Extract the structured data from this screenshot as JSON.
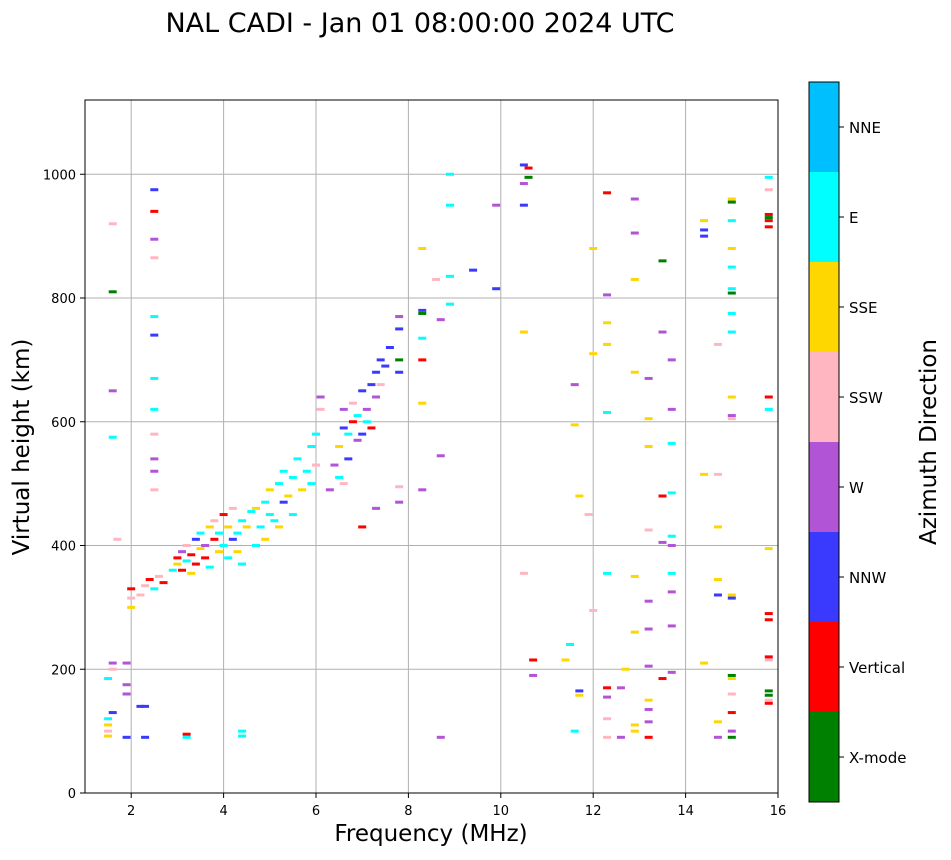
{
  "chart_data": {
    "type": "scatter",
    "title": "NAL CADI - Jan 01 08:00:00 2024 UTC",
    "xlabel": "Frequency (MHz)",
    "ylabel": "Virtual height (km)",
    "xlim": [
      1,
      16
    ],
    "ylim": [
      0,
      1120
    ],
    "xticks": [
      2,
      4,
      6,
      8,
      10,
      12,
      14,
      16
    ],
    "yticks": [
      0,
      200,
      400,
      600,
      800,
      1000
    ],
    "grid": true,
    "colorbar": {
      "label": "Azimuth Direction",
      "categories": [
        {
          "name": "X-mode",
          "color": "#008000"
        },
        {
          "name": "Vertical",
          "color": "#ff0000"
        },
        {
          "name": "NNW",
          "color": "#3a3aff"
        },
        {
          "name": "W",
          "color": "#b254d6"
        },
        {
          "name": "SSW",
          "color": "#ffb6c1"
        },
        {
          "name": "SSE",
          "color": "#ffd700"
        },
        {
          "name": "E",
          "color": "#00ffff"
        },
        {
          "name": "NNE",
          "color": "#00bfff"
        }
      ]
    },
    "points": [
      [
        1.5,
        120,
        "E"
      ],
      [
        1.5,
        110,
        "SSE"
      ],
      [
        1.5,
        100,
        "SSW"
      ],
      [
        1.5,
        92,
        "SSE"
      ],
      [
        1.5,
        185,
        "E"
      ],
      [
        1.6,
        200,
        "SSW"
      ],
      [
        1.6,
        210,
        "W"
      ],
      [
        1.6,
        130,
        "NNW"
      ],
      [
        1.6,
        575,
        "E"
      ],
      [
        1.6,
        650,
        "W"
      ],
      [
        1.6,
        810,
        "X-mode"
      ],
      [
        1.6,
        920,
        "SSW"
      ],
      [
        1.7,
        410,
        "SSW"
      ],
      [
        1.9,
        90,
        "NNW"
      ],
      [
        1.9,
        175,
        "W"
      ],
      [
        1.9,
        160,
        "W"
      ],
      [
        1.9,
        210,
        "W"
      ],
      [
        2.0,
        300,
        "SSE"
      ],
      [
        2.0,
        315,
        "SSW"
      ],
      [
        2.0,
        330,
        "Vertical"
      ],
      [
        2.2,
        140,
        "NNW"
      ],
      [
        2.3,
        140,
        "NNW"
      ],
      [
        2.3,
        90,
        "NNW"
      ],
      [
        2.5,
        975,
        "NNW"
      ],
      [
        2.5,
        940,
        "Vertical"
      ],
      [
        2.5,
        895,
        "W"
      ],
      [
        2.5,
        865,
        "SSW"
      ],
      [
        2.5,
        770,
        "E"
      ],
      [
        2.5,
        740,
        "NNW"
      ],
      [
        2.5,
        670,
        "E"
      ],
      [
        2.5,
        620,
        "E"
      ],
      [
        2.5,
        580,
        "SSW"
      ],
      [
        2.5,
        540,
        "W"
      ],
      [
        2.5,
        520,
        "W"
      ],
      [
        2.5,
        490,
        "SSW"
      ],
      [
        3.2,
        90,
        "E"
      ],
      [
        3.2,
        95,
        "Vertical"
      ],
      [
        4.4,
        100,
        "E"
      ],
      [
        4.4,
        92,
        "E"
      ],
      [
        2.2,
        320,
        "SSW"
      ],
      [
        2.3,
        335,
        "SSW"
      ],
      [
        2.4,
        345,
        "Vertical"
      ],
      [
        2.5,
        330,
        "E"
      ],
      [
        2.6,
        350,
        "SSW"
      ],
      [
        2.7,
        340,
        "Vertical"
      ],
      [
        2.9,
        360,
        "E"
      ],
      [
        3.0,
        380,
        "Vertical"
      ],
      [
        3.0,
        370,
        "SSE"
      ],
      [
        3.1,
        390,
        "W"
      ],
      [
        3.1,
        360,
        "Vertical"
      ],
      [
        3.2,
        400,
        "SSW"
      ],
      [
        3.2,
        375,
        "E"
      ],
      [
        3.3,
        385,
        "Vertical"
      ],
      [
        3.3,
        355,
        "SSE"
      ],
      [
        3.4,
        410,
        "NNW"
      ],
      [
        3.4,
        370,
        "Vertical"
      ],
      [
        3.5,
        395,
        "SSE"
      ],
      [
        3.5,
        420,
        "E"
      ],
      [
        3.6,
        380,
        "Vertical"
      ],
      [
        3.6,
        400,
        "W"
      ],
      [
        3.7,
        430,
        "SSE"
      ],
      [
        3.7,
        365,
        "E"
      ],
      [
        3.8,
        410,
        "Vertical"
      ],
      [
        3.8,
        440,
        "SSW"
      ],
      [
        3.9,
        390,
        "SSE"
      ],
      [
        3.9,
        420,
        "E"
      ],
      [
        4.0,
        400,
        "E"
      ],
      [
        4.0,
        450,
        "Vertical"
      ],
      [
        4.1,
        430,
        "SSE"
      ],
      [
        4.1,
        380,
        "E"
      ],
      [
        4.2,
        410,
        "NNW"
      ],
      [
        4.2,
        460,
        "SSW"
      ],
      [
        4.3,
        420,
        "E"
      ],
      [
        4.3,
        390,
        "SSE"
      ],
      [
        4.4,
        440,
        "E"
      ],
      [
        4.4,
        370,
        "E"
      ],
      [
        4.5,
        430,
        "SSE"
      ],
      [
        4.6,
        455,
        "E"
      ],
      [
        4.7,
        400,
        "E"
      ],
      [
        4.7,
        460,
        "SSE"
      ],
      [
        4.8,
        430,
        "E"
      ],
      [
        4.9,
        470,
        "E"
      ],
      [
        4.9,
        410,
        "SSE"
      ],
      [
        5.0,
        450,
        "E"
      ],
      [
        5.0,
        490,
        "SSE"
      ],
      [
        5.1,
        440,
        "E"
      ],
      [
        5.2,
        500,
        "E"
      ],
      [
        5.2,
        430,
        "SSE"
      ],
      [
        5.3,
        470,
        "NNW"
      ],
      [
        5.3,
        520,
        "E"
      ],
      [
        5.4,
        480,
        "SSE"
      ],
      [
        5.5,
        510,
        "E"
      ],
      [
        5.5,
        450,
        "E"
      ],
      [
        5.6,
        540,
        "E"
      ],
      [
        5.7,
        490,
        "SSE"
      ],
      [
        5.8,
        520,
        "E"
      ],
      [
        5.9,
        560,
        "E"
      ],
      [
        5.9,
        500,
        "E"
      ],
      [
        6.0,
        580,
        "E"
      ],
      [
        6.0,
        530,
        "SSW"
      ],
      [
        6.1,
        620,
        "SSW"
      ],
      [
        6.1,
        640,
        "W"
      ],
      [
        6.3,
        490,
        "W"
      ],
      [
        6.4,
        530,
        "W"
      ],
      [
        6.5,
        560,
        "SSE"
      ],
      [
        6.5,
        510,
        "E"
      ],
      [
        6.6,
        590,
        "NNW"
      ],
      [
        6.6,
        620,
        "W"
      ],
      [
        6.7,
        580,
        "E"
      ],
      [
        6.7,
        540,
        "NNW"
      ],
      [
        6.8,
        600,
        "Vertical"
      ],
      [
        6.8,
        630,
        "SSW"
      ],
      [
        6.9,
        570,
        "W"
      ],
      [
        6.9,
        610,
        "E"
      ],
      [
        7.0,
        580,
        "NNW"
      ],
      [
        7.0,
        650,
        "NNW"
      ],
      [
        7.1,
        620,
        "W"
      ],
      [
        7.1,
        600,
        "E"
      ],
      [
        7.2,
        660,
        "NNW"
      ],
      [
        7.2,
        590,
        "Vertical"
      ],
      [
        7.3,
        680,
        "NNW"
      ],
      [
        7.3,
        640,
        "W"
      ],
      [
        7.4,
        700,
        "NNW"
      ],
      [
        7.4,
        660,
        "SSW"
      ],
      [
        7.5,
        690,
        "NNW"
      ],
      [
        7.6,
        720,
        "NNW"
      ],
      [
        7.8,
        750,
        "NNW"
      ],
      [
        7.8,
        700,
        "X-mode"
      ],
      [
        7.8,
        680,
        "NNW"
      ],
      [
        7.8,
        770,
        "W"
      ],
      [
        6.6,
        500,
        "SSW"
      ],
      [
        7.0,
        430,
        "Vertical"
      ],
      [
        7.3,
        460,
        "W"
      ],
      [
        7.8,
        470,
        "W"
      ],
      [
        7.8,
        495,
        "SSW"
      ],
      [
        8.3,
        780,
        "NNW"
      ],
      [
        8.3,
        775,
        "X-mode"
      ],
      [
        8.3,
        735,
        "E"
      ],
      [
        8.3,
        700,
        "Vertical"
      ],
      [
        8.3,
        630,
        "SSE"
      ],
      [
        8.3,
        880,
        "SSE"
      ],
      [
        8.3,
        490,
        "W"
      ],
      [
        8.6,
        830,
        "SSW"
      ],
      [
        8.7,
        765,
        "W"
      ],
      [
        8.7,
        545,
        "W"
      ],
      [
        8.7,
        90,
        "W"
      ],
      [
        8.9,
        1000,
        "E"
      ],
      [
        8.9,
        950,
        "E"
      ],
      [
        8.9,
        835,
        "E"
      ],
      [
        8.9,
        790,
        "E"
      ],
      [
        9.4,
        845,
        "NNW"
      ],
      [
        9.9,
        815,
        "NNW"
      ],
      [
        9.9,
        950,
        "W"
      ],
      [
        10.5,
        1015,
        "NNW"
      ],
      [
        10.5,
        985,
        "W"
      ],
      [
        10.5,
        950,
        "NNW"
      ],
      [
        10.6,
        1010,
        "Vertical"
      ],
      [
        10.6,
        995,
        "X-mode"
      ],
      [
        10.5,
        745,
        "SSE"
      ],
      [
        10.5,
        355,
        "SSW"
      ],
      [
        10.7,
        215,
        "Vertical"
      ],
      [
        10.7,
        190,
        "W"
      ],
      [
        11.4,
        215,
        "SSE"
      ],
      [
        11.5,
        240,
        "E"
      ],
      [
        11.6,
        660,
        "W"
      ],
      [
        11.6,
        595,
        "SSE"
      ],
      [
        11.6,
        100,
        "E"
      ],
      [
        11.7,
        480,
        "SSE"
      ],
      [
        11.7,
        165,
        "NNW"
      ],
      [
        11.7,
        158,
        "SSE"
      ],
      [
        11.9,
        450,
        "SSW"
      ],
      [
        12.0,
        880,
        "SSE"
      ],
      [
        12.0,
        710,
        "SSE"
      ],
      [
        12.0,
        295,
        "SSW"
      ],
      [
        12.3,
        970,
        "Vertical"
      ],
      [
        12.3,
        805,
        "W"
      ],
      [
        12.3,
        760,
        "SSE"
      ],
      [
        12.3,
        725,
        "SSE"
      ],
      [
        12.3,
        615,
        "E"
      ],
      [
        12.3,
        355,
        "E"
      ],
      [
        12.3,
        170,
        "Vertical"
      ],
      [
        12.3,
        155,
        "W"
      ],
      [
        12.3,
        120,
        "SSW"
      ],
      [
        12.3,
        90,
        "SSW"
      ],
      [
        12.6,
        170,
        "W"
      ],
      [
        12.6,
        90,
        "W"
      ],
      [
        12.7,
        200,
        "SSE"
      ],
      [
        12.9,
        960,
        "W"
      ],
      [
        12.9,
        905,
        "W"
      ],
      [
        12.9,
        830,
        "SSE"
      ],
      [
        12.9,
        680,
        "SSE"
      ],
      [
        12.9,
        350,
        "SSE"
      ],
      [
        12.9,
        260,
        "SSE"
      ],
      [
        12.9,
        110,
        "SSE"
      ],
      [
        12.9,
        100,
        "SSE"
      ],
      [
        13.2,
        670,
        "W"
      ],
      [
        13.2,
        605,
        "SSE"
      ],
      [
        13.2,
        560,
        "SSE"
      ],
      [
        13.2,
        425,
        "SSW"
      ],
      [
        13.2,
        310,
        "W"
      ],
      [
        13.2,
        265,
        "W"
      ],
      [
        13.2,
        205,
        "W"
      ],
      [
        13.2,
        150,
        "SSE"
      ],
      [
        13.2,
        135,
        "W"
      ],
      [
        13.2,
        115,
        "W"
      ],
      [
        13.2,
        90,
        "Vertical"
      ],
      [
        13.5,
        860,
        "X-mode"
      ],
      [
        13.5,
        745,
        "W"
      ],
      [
        13.5,
        480,
        "Vertical"
      ],
      [
        13.5,
        405,
        "W"
      ],
      [
        13.5,
        185,
        "Vertical"
      ],
      [
        13.7,
        700,
        "W"
      ],
      [
        13.7,
        620,
        "W"
      ],
      [
        13.7,
        565,
        "E"
      ],
      [
        13.7,
        485,
        "E"
      ],
      [
        13.7,
        415,
        "E"
      ],
      [
        13.7,
        400,
        "W"
      ],
      [
        13.7,
        355,
        "E"
      ],
      [
        13.7,
        325,
        "W"
      ],
      [
        13.7,
        270,
        "W"
      ],
      [
        13.7,
        195,
        "W"
      ],
      [
        14.4,
        925,
        "SSE"
      ],
      [
        14.4,
        910,
        "NNW"
      ],
      [
        14.4,
        900,
        "NNW"
      ],
      [
        14.4,
        515,
        "SSE"
      ],
      [
        14.4,
        210,
        "SSE"
      ],
      [
        14.7,
        725,
        "SSW"
      ],
      [
        14.7,
        515,
        "SSW"
      ],
      [
        14.7,
        430,
        "SSE"
      ],
      [
        14.7,
        345,
        "SSE"
      ],
      [
        14.7,
        320,
        "NNW"
      ],
      [
        14.7,
        115,
        "SSE"
      ],
      [
        14.7,
        90,
        "W"
      ],
      [
        15.0,
        960,
        "SSE"
      ],
      [
        15.0,
        955,
        "X-mode"
      ],
      [
        15.0,
        925,
        "E"
      ],
      [
        15.0,
        880,
        "SSE"
      ],
      [
        15.0,
        850,
        "E"
      ],
      [
        15.0,
        815,
        "E"
      ],
      [
        15.0,
        808,
        "X-mode"
      ],
      [
        15.0,
        775,
        "E"
      ],
      [
        15.0,
        745,
        "E"
      ],
      [
        15.0,
        640,
        "SSE"
      ],
      [
        15.0,
        610,
        "W"
      ],
      [
        15.0,
        605,
        "SSW"
      ],
      [
        15.0,
        315,
        "NNW"
      ],
      [
        15.0,
        320,
        "SSE"
      ],
      [
        15.0,
        190,
        "X-mode"
      ],
      [
        15.0,
        185,
        "SSE"
      ],
      [
        15.0,
        160,
        "SSW"
      ],
      [
        15.0,
        130,
        "Vertical"
      ],
      [
        15.0,
        100,
        "W"
      ],
      [
        15.0,
        90,
        "X-mode"
      ],
      [
        15.8,
        995,
        "E"
      ],
      [
        15.8,
        975,
        "SSW"
      ],
      [
        15.8,
        935,
        "Vertical"
      ],
      [
        15.8,
        930,
        "X-mode"
      ],
      [
        15.8,
        925,
        "Vertical"
      ],
      [
        15.8,
        915,
        "Vertical"
      ],
      [
        15.8,
        640,
        "Vertical"
      ],
      [
        15.8,
        620,
        "E"
      ],
      [
        15.8,
        395,
        "SSE"
      ],
      [
        15.8,
        290,
        "Vertical"
      ],
      [
        15.8,
        280,
        "Vertical"
      ],
      [
        15.8,
        220,
        "Vertical"
      ],
      [
        15.8,
        215,
        "SSW"
      ],
      [
        15.8,
        165,
        "X-mode"
      ],
      [
        15.8,
        158,
        "X-mode"
      ],
      [
        15.8,
        150,
        "SSW"
      ],
      [
        15.8,
        145,
        "Vertical"
      ]
    ]
  }
}
